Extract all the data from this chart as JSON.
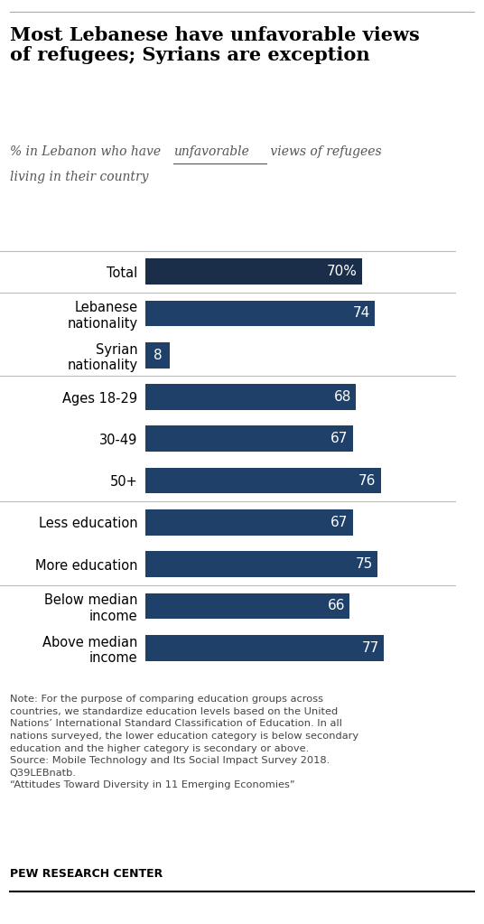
{
  "title": "Most Lebanese have unfavorable views\nof refugees; Syrians are exception",
  "categories": [
    "Total",
    "Lebanese\nnationality",
    "Syrian\nnationality",
    "Ages 18-29",
    "30-49",
    "50+",
    "Less education",
    "More education",
    "Below median\nincome",
    "Above median\nincome"
  ],
  "values": [
    70,
    74,
    8,
    68,
    67,
    76,
    67,
    75,
    66,
    77
  ],
  "value_labels": [
    "70%",
    "74",
    "8",
    "68",
    "67",
    "76",
    "67",
    "75",
    "66",
    "77"
  ],
  "bar_color_total": "#1a2e4a",
  "bar_color_regular": "#1f4068",
  "sep_after_indices": [
    0,
    2,
    5,
    7
  ],
  "note_text": "Note: For the purpose of comparing education groups across\ncountries, we standardize education levels based on the United\nNations’ International Standard Classification of Education. In all\nnations surveyed, the lower education category is below secondary\neducation and the higher category is secondary or above.\nSource: Mobile Technology and Its Social Impact Survey 2018.\nQ39LEBnatb.\n“Attitudes Toward Diversity in 11 Emerging Economies”",
  "source_label": "PEW RESEARCH CENTER",
  "xlim": [
    0,
    100
  ],
  "background_color": "#ffffff"
}
